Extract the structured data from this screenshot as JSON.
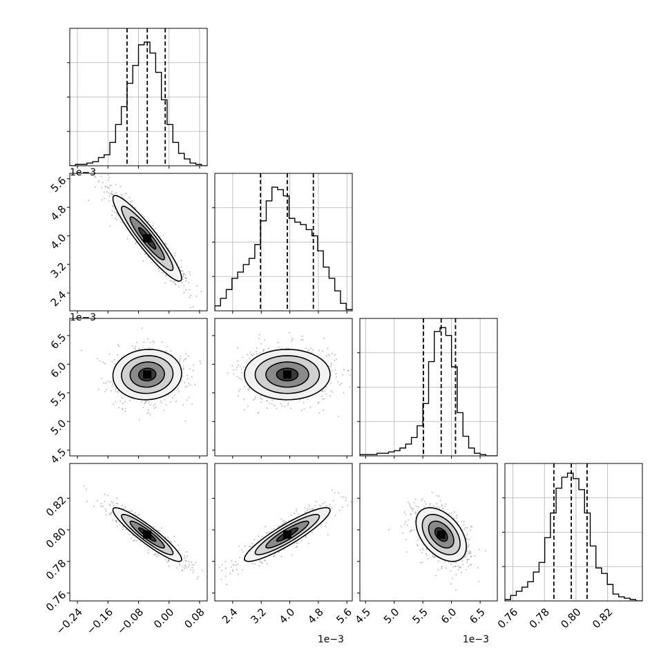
{
  "chart_data": {
    "type": "corner",
    "parameters": [
      {
        "title": "",
        "axis_offset_label": "",
        "lim": [
          -0.26,
          0.1
        ],
        "ticks": [
          -0.24,
          -0.16,
          -0.08,
          0.0,
          0.08
        ],
        "tick_labels": [
          "−0.24",
          "−0.16",
          "−0.08",
          "0.00",
          "0.08"
        ],
        "quantiles": [
          -0.11,
          -0.057,
          -0.01
        ],
        "histogram": {
          "edges": [
            -0.26,
            -0.245,
            -0.23,
            -0.215,
            -0.2,
            -0.185,
            -0.17,
            -0.155,
            -0.14,
            -0.125,
            -0.11,
            -0.095,
            -0.08,
            -0.065,
            -0.05,
            -0.035,
            -0.02,
            -0.005,
            0.01,
            0.025,
            0.04,
            0.055,
            0.07,
            0.085,
            0.1
          ],
          "counts": [
            0,
            0.01,
            0.01,
            0.02,
            0.03,
            0.06,
            0.08,
            0.17,
            0.3,
            0.43,
            0.6,
            0.73,
            0.88,
            0.9,
            0.82,
            0.68,
            0.48,
            0.3,
            0.17,
            0.09,
            0.05,
            0.02,
            0.01,
            0
          ],
          "ymax": 1.0
        }
      },
      {
        "title": "",
        "axis_offset_label": "1e−3",
        "lim": [
          1.9,
          5.75
        ],
        "ticks": [
          2.4,
          3.2,
          4.0,
          4.8,
          5.6
        ],
        "tick_labels": [
          "2.4",
          "3.2",
          "4.0",
          "4.8",
          "5.6"
        ],
        "quantiles": [
          3.18,
          3.93,
          4.66
        ],
        "histogram": {
          "edges": [
            1.9,
            2.06,
            2.22,
            2.38,
            2.54,
            2.7,
            2.86,
            3.02,
            3.18,
            3.34,
            3.5,
            3.66,
            3.82,
            3.98,
            4.14,
            4.3,
            4.46,
            4.62,
            4.78,
            4.94,
            5.1,
            5.26,
            5.42,
            5.58,
            5.75
          ],
          "counts": [
            0.04,
            0.1,
            0.17,
            0.26,
            0.31,
            0.37,
            0.42,
            0.53,
            0.72,
            0.88,
            0.99,
            0.97,
            0.92,
            0.74,
            0.71,
            0.69,
            0.65,
            0.6,
            0.48,
            0.35,
            0.26,
            0.16,
            0.06,
            0.01
          ],
          "ymax": 1.1
        }
      },
      {
        "title": "",
        "axis_offset_label": "1e−3",
        "lim": [
          4.4,
          6.8
        ],
        "ticks": [
          4.5,
          5.0,
          5.5,
          6.0,
          6.5
        ],
        "tick_labels": [
          "4.5",
          "5.0",
          "5.5",
          "6.0",
          "6.5"
        ],
        "quantiles": [
          5.51,
          5.82,
          6.07
        ],
        "histogram": {
          "edges": [
            4.4,
            4.5,
            4.6,
            4.7,
            4.8,
            4.9,
            5.0,
            5.1,
            5.2,
            5.3,
            5.4,
            5.5,
            5.6,
            5.7,
            5.8,
            5.9,
            6.0,
            6.1,
            6.2,
            6.3,
            6.4,
            6.5,
            6.6,
            6.7,
            6.8
          ],
          "counts": [
            0.01,
            0.01,
            0.01,
            0.02,
            0.02,
            0.03,
            0.04,
            0.06,
            0.09,
            0.14,
            0.23,
            0.4,
            0.72,
            0.95,
            0.98,
            0.92,
            0.68,
            0.33,
            0.15,
            0.06,
            0.02,
            0.01,
            0,
            0
          ],
          "ymax": 1.05
        }
      },
      {
        "title": "",
        "axis_offset_label": "",
        "lim": [
          0.755,
          0.842
        ],
        "ticks": [
          0.76,
          0.78,
          0.8,
          0.82
        ],
        "tick_labels": [
          "0.76",
          "0.78",
          "0.80",
          "0.82"
        ],
        "quantiles": [
          0.786,
          0.797,
          0.807
        ],
        "histogram": {
          "edges": [
            0.755,
            0.7586,
            0.7622,
            0.7658,
            0.7694,
            0.773,
            0.7766,
            0.7802,
            0.7838,
            0.7874,
            0.791,
            0.7946,
            0.7982,
            0.8018,
            0.8054,
            0.809,
            0.8126,
            0.8162,
            0.8198,
            0.8234,
            0.827,
            0.8306,
            0.8342,
            0.8378,
            0.842
          ],
          "counts": [
            0.01,
            0.04,
            0.07,
            0.1,
            0.14,
            0.21,
            0.28,
            0.46,
            0.64,
            0.82,
            0.9,
            0.93,
            0.89,
            0.81,
            0.64,
            0.4,
            0.24,
            0.2,
            0.12,
            0.05,
            0.03,
            0.02,
            0.01,
            0
          ],
          "ymax": 1.0
        }
      }
    ],
    "pairs": [
      {
        "x": 0,
        "y": 1,
        "cx": -0.057,
        "cy": 3.93,
        "sx": 0.045,
        "sy": 0.6,
        "rho": -0.93
      },
      {
        "x": 0,
        "y": 2,
        "cx": -0.057,
        "cy": 5.82,
        "sx": 0.045,
        "sy": 0.22,
        "rho": 0.05
      },
      {
        "x": 1,
        "y": 2,
        "cx": 3.93,
        "cy": 5.82,
        "sx": 0.6,
        "sy": 0.22,
        "rho": 0.0
      },
      {
        "x": 0,
        "y": 3,
        "cx": -0.057,
        "cy": 0.797,
        "sx": 0.045,
        "sy": 0.0085,
        "rho": -0.92
      },
      {
        "x": 1,
        "y": 3,
        "cx": 3.93,
        "cy": 0.797,
        "sx": 0.6,
        "sy": 0.0085,
        "rho": 0.9
      },
      {
        "x": 2,
        "y": 3,
        "cx": 5.82,
        "cy": 0.797,
        "sx": 0.22,
        "sy": 0.0085,
        "rho": -0.45
      }
    ],
    "contour_levels_sigma": [
      0.5,
      1.0,
      1.5,
      2.0
    ],
    "grid": true,
    "legend": "none",
    "colors": {
      "line": "#000000",
      "grid": "#b0b0b0",
      "scatter": "#9a9a9a",
      "fill_light": "#f2f2f2",
      "density_dark": "#000000"
    }
  }
}
